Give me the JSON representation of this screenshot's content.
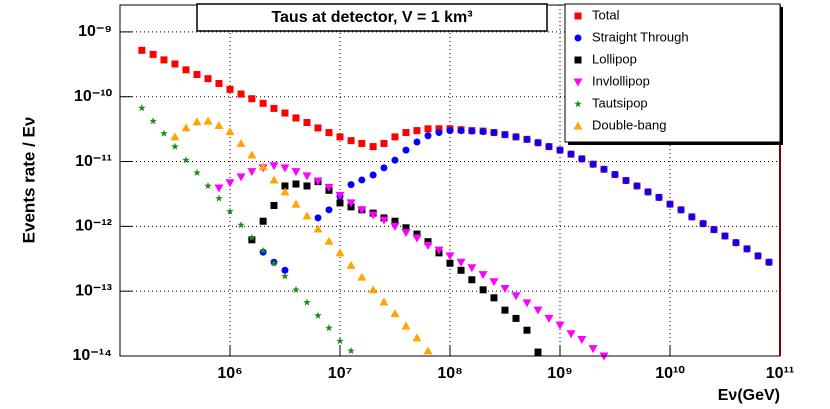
{
  "chart_data": {
    "type": "scatter",
    "title": "Taus at detector, V = 1 km³",
    "x_label": "Eν(GeV)",
    "y_label": "Events rate / Eν",
    "x_log": true,
    "y_log": true,
    "grid": true,
    "xlim": [
      100000.0,
      100000000000.0
    ],
    "ylim": [
      1e-14,
      2.6e-09
    ],
    "xticks": [
      {
        "value": 1000000.0,
        "label": "10⁶"
      },
      {
        "value": 10000000.0,
        "label": "10⁷"
      },
      {
        "value": 100000000.0,
        "label": "10⁸"
      },
      {
        "value": 1000000000.0,
        "label": "10⁹"
      },
      {
        "value": 10000000000.0,
        "label": "10¹⁰"
      },
      {
        "value": 100000000000.0,
        "label": "10¹¹"
      }
    ],
    "yticks": [
      {
        "value": 1e-14,
        "label": "10⁻¹⁴"
      },
      {
        "value": 1e-13,
        "label": "10⁻¹³"
      },
      {
        "value": 1e-12,
        "label": "10⁻¹²"
      },
      {
        "value": 1e-11,
        "label": "10⁻¹¹"
      },
      {
        "value": 1e-10,
        "label": "10⁻¹⁰"
      },
      {
        "value": 1e-09,
        "label": "10⁻⁹"
      }
    ],
    "legend": "top-right",
    "series": [
      {
        "name": "Total",
        "color": "#ff0000",
        "marker": "square",
        "x": [
          158000.0,
          200000.0,
          251000.0,
          316000.0,
          398000.0,
          501000.0,
          631000.0,
          794000.0,
          1000000.0,
          1260000.0,
          1580000.0,
          2000000.0,
          2510000.0,
          3160000.0,
          3980000.0,
          5010000.0,
          6310000.0,
          7940000.0,
          10000000.0,
          12600000.0,
          15800000.0,
          20000000.0,
          25100000.0,
          31600000.0,
          39800000.0,
          50100000.0,
          63100000.0,
          79400000.0,
          100000000.0,
          126000000.0,
          158000000.0,
          200000000.0,
          251000000.0,
          316000000.0,
          398000000.0,
          501000000.0,
          631000000.0,
          794000000.0,
          1000000000.0,
          1260000000.0,
          1580000000.0,
          2000000000.0,
          2510000000.0,
          3160000000.0,
          3980000000.0,
          5010000000.0,
          6310000000.0,
          7940000000.0,
          10000000000.0,
          12600000000.0,
          15800000000.0,
          20000000000.0,
          25100000000.0,
          31600000000.0,
          39800000000.0,
          50100000000.0,
          63100000000.0,
          79400000000.0
        ],
        "values": [
          5.2e-10,
          4.5e-10,
          3.7e-10,
          3.2e-10,
          2.6e-10,
          2.2e-10,
          1.9e-10,
          1.6e-10,
          1.3e-10,
          1.1e-10,
          9.3e-11,
          7.9e-11,
          6.6e-11,
          5.6e-11,
          4.7e-11,
          4e-11,
          3.3e-11,
          2.8e-11,
          2.4e-11,
          2.1e-11,
          1.9e-11,
          1.7e-11,
          1.9e-11,
          2.4e-11,
          2.8e-11,
          3e-11,
          3.2e-11,
          3.2e-11,
          3.2e-11,
          3.1e-11,
          3e-11,
          2.95e-11,
          2.8e-11,
          2.6e-11,
          2.4e-11,
          2.2e-11,
          1.95e-11,
          1.7e-11,
          1.5e-11,
          1.3e-11,
          1.1e-11,
          9.1e-12,
          7.6e-12,
          6.3e-12,
          5.1e-12,
          4.2e-12,
          3.4e-12,
          2.8e-12,
          2.2e-12,
          1.8e-12,
          1.4e-12,
          1.1e-12,
          8.9e-13,
          7.1e-13,
          5.6e-13,
          4.5e-13,
          3.5e-13,
          2.8e-13
        ]
      },
      {
        "name": "Straight Through",
        "color": "#0000ff",
        "marker": "circle",
        "x": [
          1580000.0,
          2000000.0,
          2510000.0,
          3160000.0,
          6310000.0,
          7940000.0,
          10000000.0,
          12600000.0,
          15800000.0,
          20000000.0,
          25100000.0,
          31600000.0,
          39800000.0,
          50100000.0,
          63100000.0,
          79400000.0,
          100000000.0,
          126000000.0,
          158000000.0,
          200000000.0,
          251000000.0,
          316000000.0,
          398000000.0,
          501000000.0,
          631000000.0,
          794000000.0,
          1000000000.0,
          1260000000.0,
          1580000000.0,
          2000000000.0,
          2510000000.0,
          3160000000.0,
          3980000000.0,
          5010000000.0,
          6310000000.0,
          7940000000.0,
          10000000000.0,
          12600000000.0,
          15800000000.0,
          20000000000.0,
          25100000000.0,
          31600000000.0,
          39800000000.0,
          50100000000.0,
          63100000000.0,
          79400000000.0
        ],
        "values": [
          6.3e-13,
          4e-13,
          2.8e-13,
          2.1e-13,
          1.35e-12,
          1.8e-12,
          2.9e-12,
          4.4e-12,
          5.2e-12,
          6.2e-12,
          8e-12,
          1.05e-11,
          1.5e-11,
          2e-11,
          2.5e-11,
          2.8e-11,
          3e-11,
          3e-11,
          2.95e-11,
          2.9e-11,
          2.8e-11,
          2.6e-11,
          2.4e-11,
          2.2e-11,
          1.95e-11,
          1.7e-11,
          1.5e-11,
          1.3e-11,
          1.1e-11,
          9.1e-12,
          7.6e-12,
          6.3e-12,
          5.1e-12,
          4.2e-12,
          3.4e-12,
          2.8e-12,
          2.2e-12,
          1.8e-12,
          1.4e-12,
          1.1e-12,
          8.9e-13,
          7.1e-13,
          5.6e-13,
          4.5e-13,
          3.5e-13,
          2.8e-13
        ]
      },
      {
        "name": "Lollipop",
        "color": "#000000",
        "marker": "square",
        "x": [
          1580000.0,
          2000000.0,
          2510000.0,
          3160000.0,
          3980000.0,
          5010000.0,
          6310000.0,
          7940000.0,
          10000000.0,
          12600000.0,
          15800000.0,
          20000000.0,
          25100000.0,
          31600000.0,
          39800000.0,
          50100000.0,
          63100000.0,
          79400000.0,
          100000000.0,
          126000000.0,
          158000000.0,
          200000000.0,
          251000000.0,
          316000000.0,
          398000000.0,
          501000000.0,
          631000000.0
        ],
        "values": [
          6.2e-13,
          1.2e-12,
          2.1e-12,
          4.2e-12,
          4.5e-12,
          4.2e-12,
          4.9e-12,
          3.6e-12,
          2.3e-12,
          2e-12,
          1.8e-12,
          1.6e-12,
          1.35e-12,
          1.2e-12,
          9.5e-13,
          7.6e-13,
          5.8e-13,
          3.9e-13,
          2.7e-13,
          2.1e-13,
          1.5e-13,
          1.05e-13,
          7.9e-14,
          5.1e-14,
          3.8e-14,
          2.5e-14,
          1.15e-14
        ]
      },
      {
        "name": "Invlollipop",
        "color": "#ff00ff",
        "marker": "triangle-down",
        "x": [
          794000.0,
          1000000.0,
          1260000.0,
          1580000.0,
          2000000.0,
          2510000.0,
          3160000.0,
          3980000.0,
          5010000.0,
          6310000.0,
          7940000.0,
          10000000.0,
          12600000.0,
          15800000.0,
          20000000.0,
          25100000.0,
          31600000.0,
          39800000.0,
          50100000.0,
          63100000.0,
          79400000.0,
          100000000.0,
          126000000.0,
          158000000.0,
          200000000.0,
          251000000.0,
          316000000.0,
          398000000.0,
          501000000.0,
          631000000.0,
          794000000.0,
          1000000000.0,
          1260000000.0,
          1580000000.0,
          2000000000.0,
          2510000000.0
        ],
        "values": [
          3.9e-12,
          4.7e-12,
          5.8e-12,
          7e-12,
          8e-12,
          8.6e-12,
          8e-12,
          7e-12,
          6e-12,
          5e-12,
          4e-12,
          3e-12,
          2.3e-12,
          1.8e-12,
          1.5e-12,
          1.25e-12,
          1e-12,
          8e-13,
          6.6e-13,
          5.1e-13,
          4.3e-13,
          3.5e-13,
          2.8e-13,
          2.3e-13,
          1.8e-13,
          1.4e-13,
          1.1e-13,
          8.5e-14,
          6.6e-14,
          5.1e-14,
          3.8e-14,
          3e-14,
          2.2e-14,
          1.8e-14,
          1.3e-14,
          1e-14
        ]
      },
      {
        "name": "Tautsipop",
        "color": "#1a8c1a",
        "marker": "star",
        "x": [
          158000.0,
          200000.0,
          251000.0,
          316000.0,
          398000.0,
          501000.0,
          631000.0,
          794000.0,
          1000000.0,
          1260000.0,
          1580000.0,
          2000000.0,
          2510000.0,
          3160000.0,
          3980000.0,
          5010000.0,
          6310000.0,
          7940000.0,
          10000000.0,
          12600000.0
        ],
        "values": [
          6.7e-11,
          4.2e-11,
          2.7e-11,
          1.7e-11,
          1.05e-11,
          6.7e-12,
          4.2e-12,
          2.7e-12,
          1.7e-12,
          1.05e-12,
          6.7e-13,
          4.2e-13,
          2.7e-13,
          1.7e-13,
          1.05e-13,
          6.7e-14,
          4.2e-14,
          2.7e-14,
          1.7e-14,
          1.2e-14
        ]
      },
      {
        "name": "Double-bang",
        "color": "#ffa500",
        "marker": "triangle-up",
        "x": [
          316000.0,
          398000.0,
          501000.0,
          631000.0,
          794000.0,
          1000000.0,
          1260000.0,
          1580000.0,
          2000000.0,
          2510000.0,
          3160000.0,
          3980000.0,
          5010000.0,
          6310000.0,
          7940000.0,
          10000000.0,
          12600000.0,
          15800000.0,
          20000000.0,
          25100000.0,
          31600000.0,
          39800000.0,
          50100000.0,
          63100000.0
        ],
        "values": [
          2.4e-11,
          3.3e-11,
          4.1e-11,
          4.2e-11,
          3.6e-11,
          2.9e-11,
          1.9e-11,
          1.26e-11,
          8.3e-12,
          5.2e-12,
          3.4e-12,
          2.2e-12,
          1.45e-12,
          9.1e-13,
          5.9e-13,
          3.9e-13,
          2.5e-13,
          1.65e-13,
          1.05e-13,
          6.8e-14,
          4.5e-14,
          2.9e-14,
          1.9e-14,
          1.2e-14
        ]
      }
    ]
  }
}
